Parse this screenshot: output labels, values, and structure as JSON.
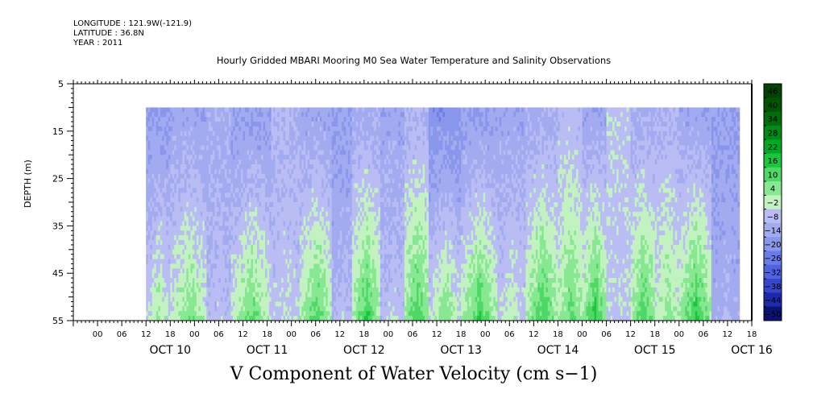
{
  "header": {
    "longitude": "LONGITUDE : 121.9W(-121.9)",
    "latitude": "LATITUDE : 36.8N",
    "year": "YEAR : 2011"
  },
  "colors": {
    "background": "#ffffff",
    "no_data": "#ffffff"
  },
  "chart_data": {
    "type": "heatmap",
    "title": "Hourly Gridded MBARI Mooring M0 Sea Water Temperature and Salinity Observations",
    "bottom_title": "V Component of Water Velocity (cm s−1)",
    "ylabel": "DEPTH (m)",
    "xlabel": "",
    "y_range": [
      55,
      5
    ],
    "y_ticks": [
      "5",
      "15",
      "25",
      "35",
      "45",
      "55"
    ],
    "data_depth_range": [
      10,
      55
    ],
    "x_range_hours": [
      -12,
      156
    ],
    "data_time_range_hours": [
      6,
      153
    ],
    "x_hour_ticks": [
      "00",
      "06",
      "12",
      "18",
      "00",
      "06",
      "12",
      "18",
      "00",
      "06",
      "12",
      "18",
      "00",
      "06",
      "12",
      "18",
      "00",
      "06",
      "12",
      "18",
      "00",
      "06",
      "12",
      "18",
      "00",
      "06",
      "12",
      "18"
    ],
    "day_labels": [
      "OCT 10",
      "OCT 11",
      "OCT 12",
      "OCT 13",
      "OCT 14",
      "OCT 15",
      "OCT 16"
    ],
    "colorbar_ticks": [
      "46",
      "40",
      "34",
      "28",
      "22",
      "16",
      "10",
      "4",
      "−2",
      "−8",
      "−14",
      "−20",
      "−26",
      "−32",
      "−38",
      "−44",
      "−50"
    ],
    "colorbar_levels": [
      {
        "from": 46,
        "to": 52,
        "color": "#004400"
      },
      {
        "from": 40,
        "to": 46,
        "color": "#005500"
      },
      {
        "from": 34,
        "to": 40,
        "color": "#006d0b"
      },
      {
        "from": 28,
        "to": 34,
        "color": "#008a16"
      },
      {
        "from": 22,
        "to": 28,
        "color": "#00a824"
      },
      {
        "from": 16,
        "to": 22,
        "color": "#16c83c"
      },
      {
        "from": 10,
        "to": 16,
        "color": "#4ed866"
      },
      {
        "from": 4,
        "to": 10,
        "color": "#86e890"
      },
      {
        "from": -2,
        "to": 4,
        "color": "#c2f2c0"
      },
      {
        "from": -8,
        "to": -2,
        "color": "#b9bdf3"
      },
      {
        "from": -14,
        "to": -8,
        "color": "#a2aaf0"
      },
      {
        "from": -20,
        "to": -14,
        "color": "#8896ec"
      },
      {
        "from": -26,
        "to": -20,
        "color": "#6a7ce8"
      },
      {
        "from": -32,
        "to": -26,
        "color": "#4f63e2"
      },
      {
        "from": -38,
        "to": -32,
        "color": "#3346cc"
      },
      {
        "from": -44,
        "to": -38,
        "color": "#1d2aa8"
      },
      {
        "from": -50,
        "to": -44,
        "color": "#0b1276"
      }
    ],
    "field_bands": [
      {
        "start_hour": 6,
        "end_hour": 12,
        "surface": -14,
        "bottom": 6
      },
      {
        "start_hour": 12,
        "end_hour": 21,
        "surface": -12,
        "bottom": 10
      },
      {
        "start_hour": 21,
        "end_hour": 27,
        "surface": -10,
        "bottom": -4
      },
      {
        "start_hour": 27,
        "end_hour": 37,
        "surface": -14,
        "bottom": 12
      },
      {
        "start_hour": 37,
        "end_hour": 44,
        "surface": -8,
        "bottom": -2
      },
      {
        "start_hour": 44,
        "end_hour": 52,
        "surface": -12,
        "bottom": 14
      },
      {
        "start_hour": 52,
        "end_hour": 57,
        "surface": -14,
        "bottom": -4
      },
      {
        "start_hour": 57,
        "end_hour": 64,
        "surface": -10,
        "bottom": 16
      },
      {
        "start_hour": 64,
        "end_hour": 70,
        "surface": -12,
        "bottom": -2
      },
      {
        "start_hour": 70,
        "end_hour": 76,
        "surface": -8,
        "bottom": 16
      },
      {
        "start_hour": 76,
        "end_hour": 84,
        "surface": -18,
        "bottom": 10
      },
      {
        "start_hour": 84,
        "end_hour": 93,
        "surface": -14,
        "bottom": 16
      },
      {
        "start_hour": 93,
        "end_hour": 100,
        "surface": -12,
        "bottom": 2
      },
      {
        "start_hour": 100,
        "end_hour": 108,
        "surface": -10,
        "bottom": 16
      },
      {
        "start_hour": 108,
        "end_hour": 114,
        "surface": -6,
        "bottom": 12
      },
      {
        "start_hour": 114,
        "end_hour": 120,
        "surface": -12,
        "bottom": 18
      },
      {
        "start_hour": 120,
        "end_hour": 126,
        "surface": -4,
        "bottom": -4
      },
      {
        "start_hour": 126,
        "end_hour": 132,
        "surface": -10,
        "bottom": 16
      },
      {
        "start_hour": 132,
        "end_hour": 138,
        "surface": -8,
        "bottom": 8
      },
      {
        "start_hour": 138,
        "end_hour": 146,
        "surface": -12,
        "bottom": 18
      },
      {
        "start_hour": 146,
        "end_hour": 153,
        "surface": -14,
        "bottom": -8
      }
    ]
  }
}
